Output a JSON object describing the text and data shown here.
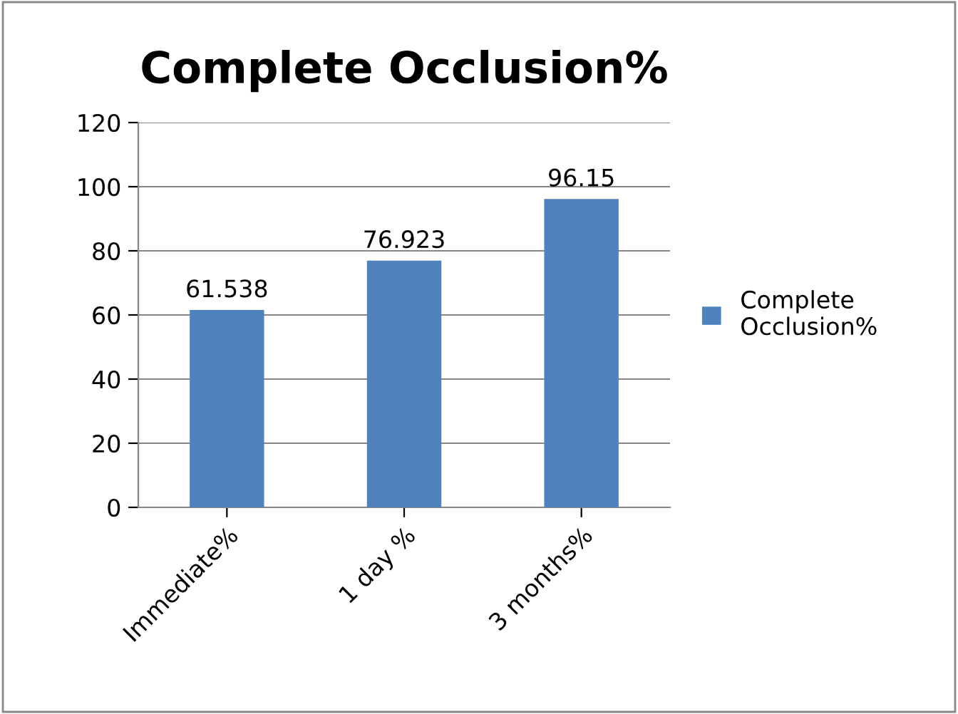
{
  "chart_data": {
    "type": "bar",
    "title": "Complete Occlusion%",
    "categories": [
      "Immediate%",
      "1 day %",
      "3 months%"
    ],
    "series": [
      {
        "name": "Complete Occlusion%",
        "color": "#4f81bd",
        "values": [
          61.538,
          76.923,
          96.15
        ]
      }
    ],
    "ylim": [
      0,
      120
    ],
    "yticks": [
      0,
      20,
      40,
      60,
      80,
      100,
      120
    ],
    "grid": "y",
    "legend": "right",
    "data_labels": true
  }
}
